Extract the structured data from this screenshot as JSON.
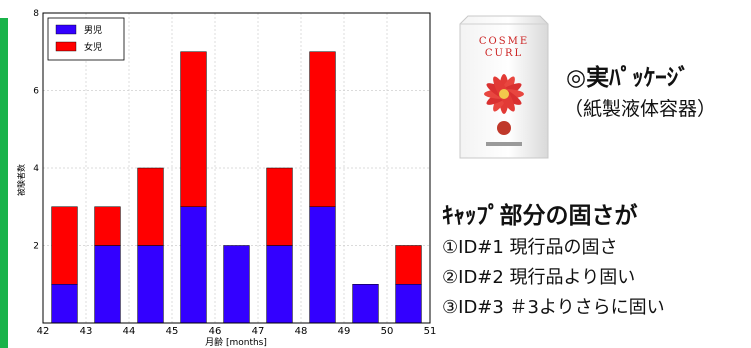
{
  "chart_data": {
    "type": "bar",
    "stacked": true,
    "x": [
      42.5,
      43.5,
      44.5,
      45.5,
      46.5,
      47.5,
      48.5,
      49.5,
      50.5
    ],
    "series": [
      {
        "name": "男児",
        "color": "#3300ff",
        "values": [
          1,
          2,
          2,
          3,
          2,
          2,
          3,
          1,
          1
        ]
      },
      {
        "name": "女児",
        "color": "#ff0000",
        "values": [
          2,
          1,
          2,
          4,
          0,
          2,
          4,
          0,
          1
        ]
      }
    ],
    "xlim": [
      42,
      51
    ],
    "ylim": [
      0,
      8
    ],
    "xticks": [
      "42",
      "43",
      "44",
      "45",
      "46",
      "47",
      "48",
      "49",
      "50",
      "51"
    ],
    "yticks": [
      "2",
      "4",
      "6",
      "8"
    ],
    "xlabel": "月齢 [months]",
    "ylabel": "被験者数",
    "legend_position": "top-left",
    "grid": true
  },
  "package": {
    "brand_line1": "COSME",
    "brand_line2": "CURL",
    "title": "◎実ﾊﾟｯｹｰｼﾞ",
    "subtitle": "（紙製液体容器）"
  },
  "cap": {
    "heading": "ｷｬｯﾌﾟ部分の固さが",
    "items": [
      "①ID#1 現行品の固さ",
      "②ID#2 現行品より固い",
      "③ID#3 ＃3よりさらに固い"
    ]
  },
  "colors": {
    "accent": "#19b34a",
    "male": "#3300ff",
    "female": "#ff0000"
  }
}
